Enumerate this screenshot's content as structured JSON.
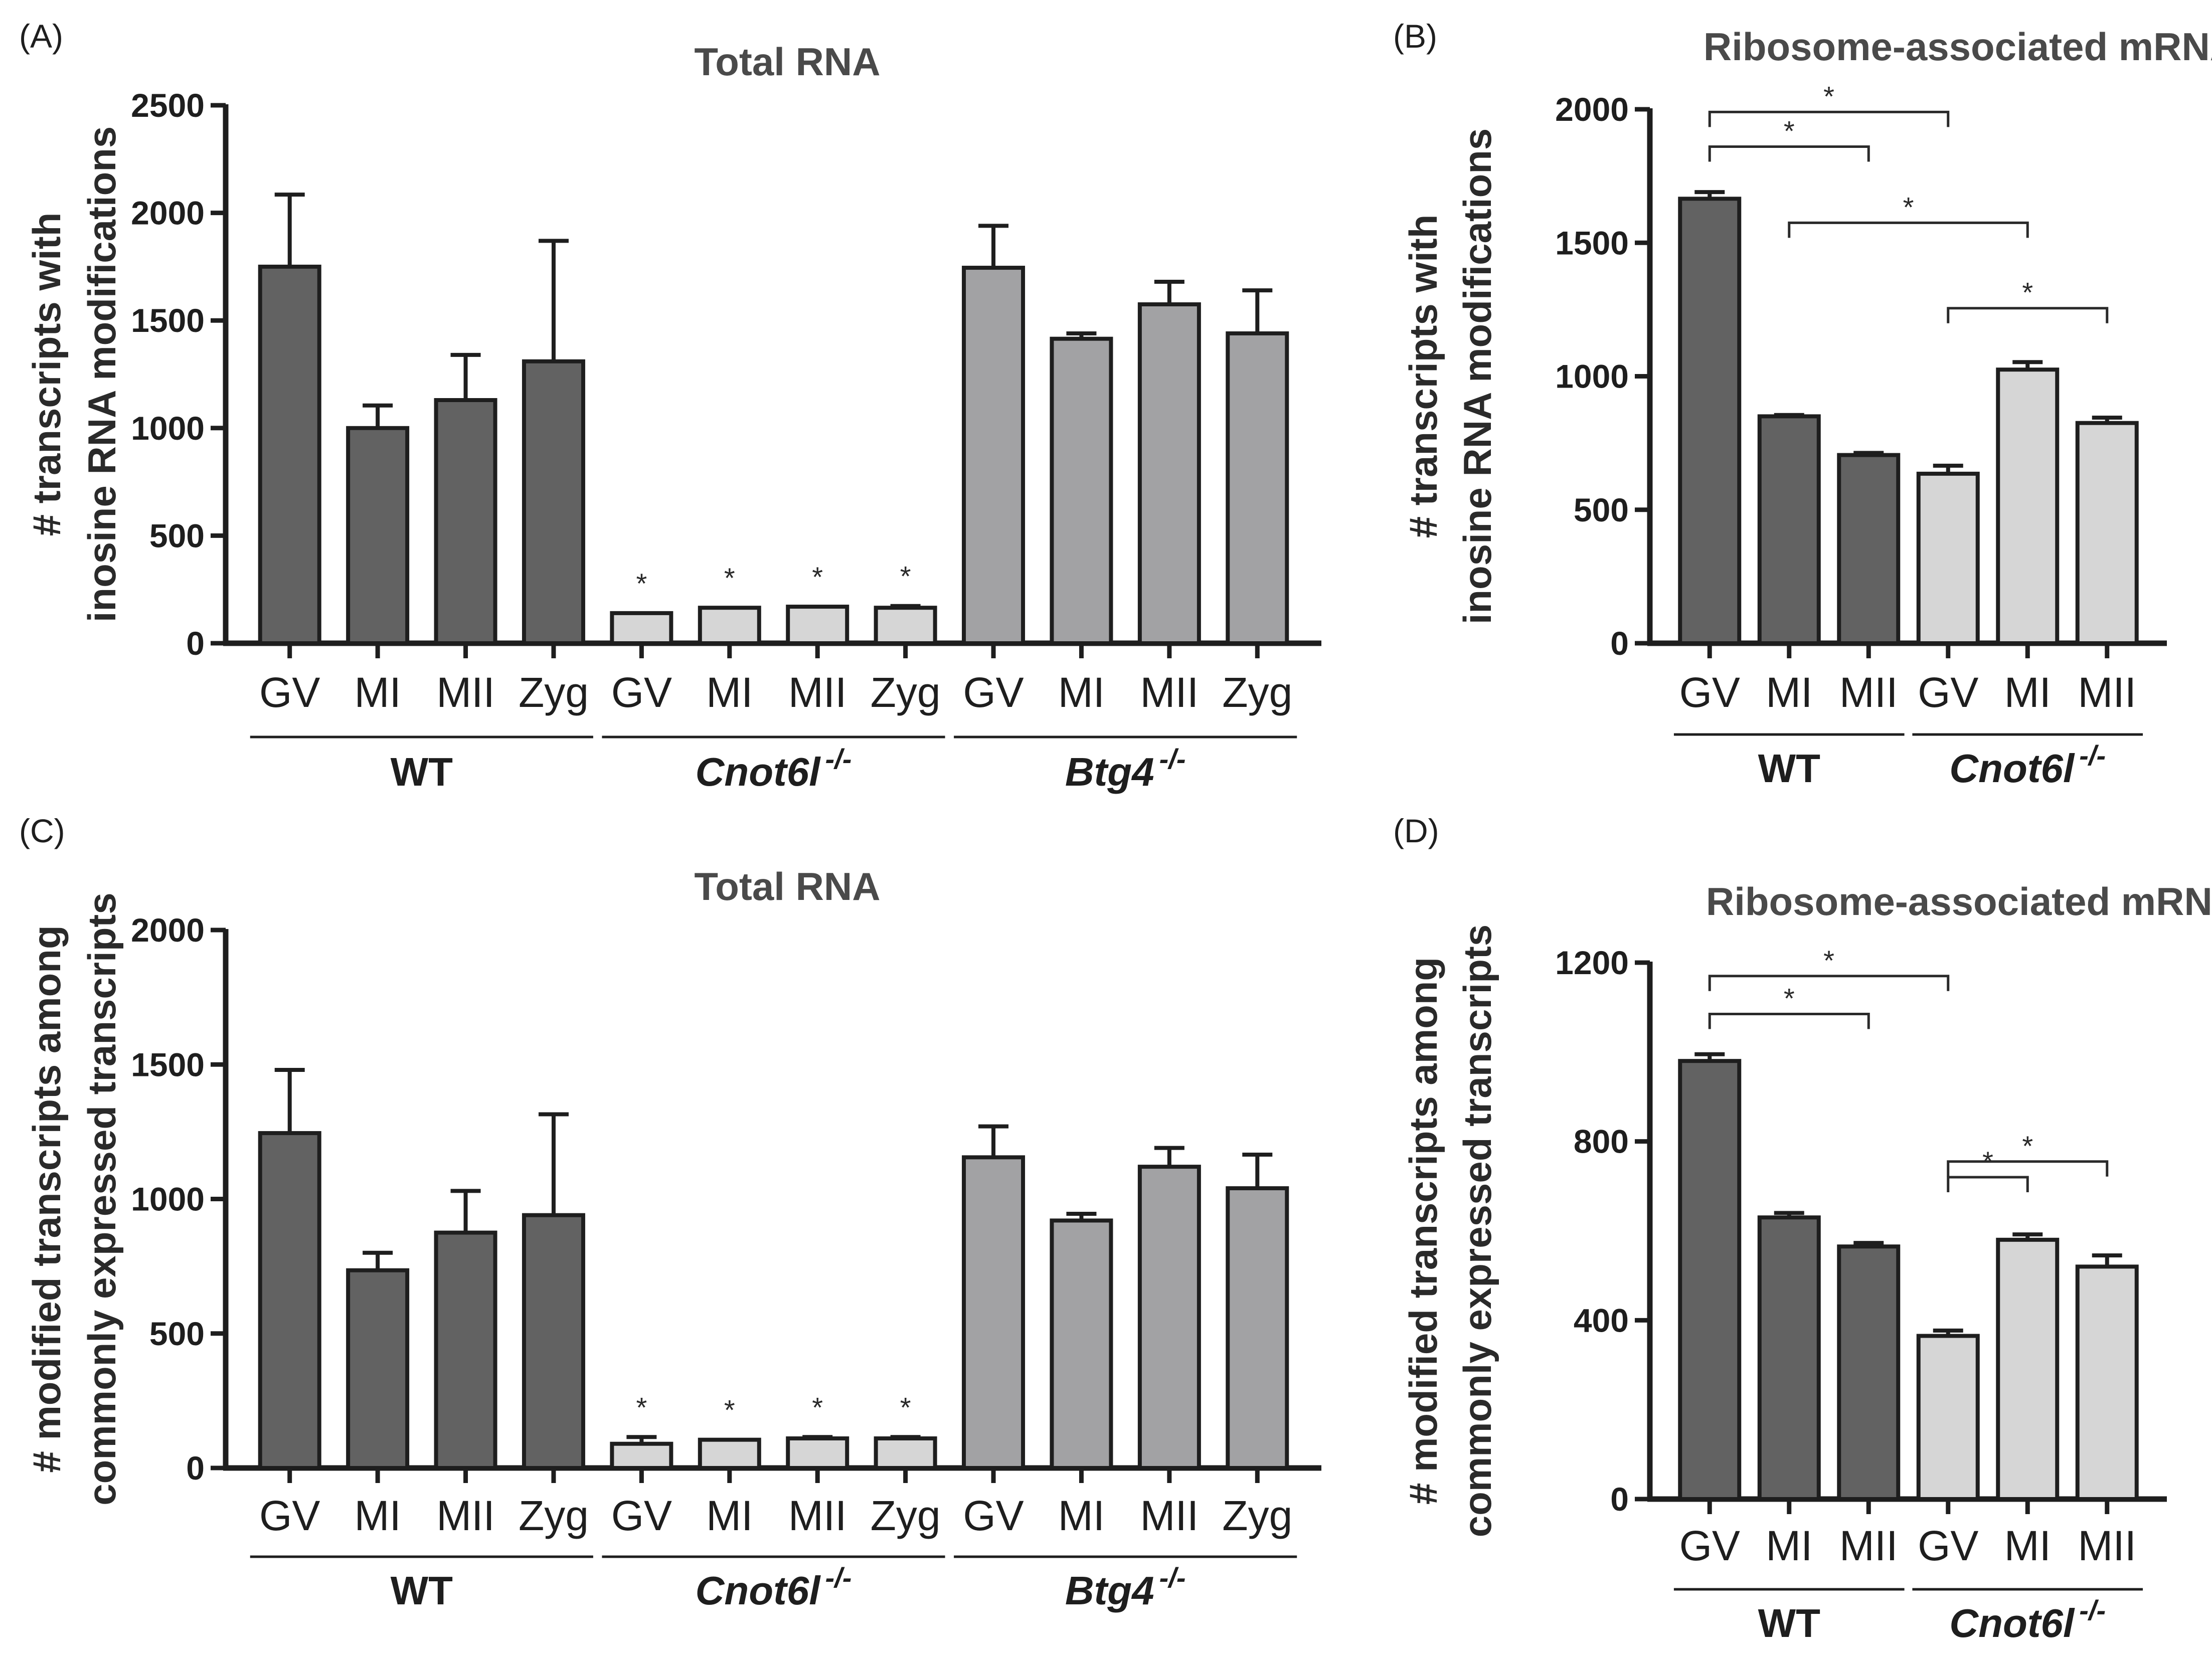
{
  "colors": {
    "wt": "#626262",
    "cnot6l": "#d6d6d6",
    "btg4": "#a2a2a4",
    "axis": "#1e1e1e",
    "title": "#4a4a4a"
  },
  "chart_data": [
    {
      "panel": "(A)",
      "type": "bar",
      "title": "Total RNA",
      "ylabel_lines": [
        "# transcripts with",
        "inosine RNA modifications"
      ],
      "ylim": [
        0,
        2500
      ],
      "yticks": [
        0,
        500,
        1000,
        1500,
        2000,
        2500
      ],
      "categories": [
        "GV",
        "MI",
        "MII",
        "Zyg",
        "GV",
        "MI",
        "MII",
        "Zyg",
        "GV",
        "MI",
        "MII",
        "Zyg"
      ],
      "values": [
        1750,
        1000,
        1130,
        1310,
        140,
        165,
        170,
        165,
        1745,
        1415,
        1575,
        1440
      ],
      "errors": [
        335,
        105,
        210,
        560,
        0,
        0,
        0,
        8,
        195,
        25,
        105,
        200
      ],
      "colorKeys": [
        "wt",
        "wt",
        "wt",
        "wt",
        "cnot6l",
        "cnot6l",
        "cnot6l",
        "cnot6l",
        "btg4",
        "btg4",
        "btg4",
        "btg4"
      ],
      "starred": [
        4,
        5,
        6,
        7
      ],
      "star_label": "*",
      "groups": [
        {
          "name": "WT",
          "sup": "",
          "italic": false,
          "from": 0,
          "to": 3
        },
        {
          "name": "Cnot6l",
          "sup": "-/-",
          "italic": true,
          "from": 4,
          "to": 7
        },
        {
          "name": "Btg4",
          "sup": "-/-",
          "italic": true,
          "from": 8,
          "to": 11
        }
      ],
      "brackets": []
    },
    {
      "panel": "(B)",
      "type": "bar",
      "title": "Ribosome-associated mRNA",
      "ylabel_lines": [
        "# transcripts with",
        "inosine RNA modifications"
      ],
      "ylim": [
        0,
        2000
      ],
      "yticks": [
        0,
        500,
        1000,
        1500,
        2000
      ],
      "categories": [
        "GV",
        "MI",
        "MII",
        "GV",
        "MI",
        "MII"
      ],
      "values": [
        1665,
        850,
        705,
        635,
        1025,
        825
      ],
      "errors": [
        25,
        5,
        8,
        30,
        28,
        20
      ],
      "colorKeys": [
        "wt",
        "wt",
        "wt",
        "cnot6l",
        "cnot6l",
        "cnot6l"
      ],
      "starred": [],
      "star_label": "*",
      "groups": [
        {
          "name": "WT",
          "sup": "",
          "italic": false,
          "from": 0,
          "to": 2
        },
        {
          "name": "Cnot6l",
          "sup": "-/-",
          "italic": true,
          "from": 3,
          "to": 5
        }
      ],
      "brackets": [
        {
          "from": 0,
          "to": 3,
          "y": 1990,
          "label": "*"
        },
        {
          "from": 0,
          "to": 2,
          "y": 1860,
          "label": "*"
        },
        {
          "from": 1,
          "to": 4,
          "y": 1575,
          "label": "*"
        },
        {
          "from": 3,
          "to": 5,
          "y": 1255,
          "label": "*"
        }
      ]
    },
    {
      "panel": "(C)",
      "type": "bar",
      "title": "Total RNA",
      "ylabel_lines": [
        "# modified transcripts among",
        "commonly expressed transcripts"
      ],
      "ylim": [
        0,
        2000
      ],
      "yticks": [
        0,
        500,
        1000,
        1500,
        2000
      ],
      "categories": [
        "GV",
        "MI",
        "MII",
        "Zyg",
        "GV",
        "MI",
        "MII",
        "Zyg",
        "GV",
        "MI",
        "MII",
        "Zyg"
      ],
      "values": [
        1245,
        735,
        875,
        940,
        90,
        105,
        110,
        110,
        1155,
        920,
        1120,
        1040
      ],
      "errors": [
        235,
        65,
        155,
        375,
        25,
        0,
        5,
        5,
        115,
        25,
        70,
        125
      ],
      "colorKeys": [
        "wt",
        "wt",
        "wt",
        "wt",
        "cnot6l",
        "cnot6l",
        "cnot6l",
        "cnot6l",
        "btg4",
        "btg4",
        "btg4",
        "btg4"
      ],
      "starred": [
        4,
        5,
        6,
        7
      ],
      "star_label": "*",
      "groups": [
        {
          "name": "WT",
          "sup": "",
          "italic": false,
          "from": 0,
          "to": 3
        },
        {
          "name": "Cnot6l",
          "sup": "-/-",
          "italic": true,
          "from": 4,
          "to": 7
        },
        {
          "name": "Btg4",
          "sup": "-/-",
          "italic": true,
          "from": 8,
          "to": 11
        }
      ],
      "brackets": []
    },
    {
      "panel": "(D)",
      "type": "bar",
      "title": "Ribosome-associated mRNA",
      "ylabel_lines": [
        "# modified transcripts among",
        "commonly expressed transcripts"
      ],
      "ylim": [
        0,
        1200
      ],
      "yticks": [
        0,
        400,
        800,
        1200
      ],
      "categories": [
        "GV",
        "MI",
        "MII",
        "GV",
        "MI",
        "MII"
      ],
      "values": [
        980,
        630,
        565,
        365,
        580,
        520
      ],
      "errors": [
        15,
        10,
        8,
        12,
        12,
        25
      ],
      "colorKeys": [
        "wt",
        "wt",
        "wt",
        "cnot6l",
        "cnot6l",
        "cnot6l"
      ],
      "starred": [],
      "star_label": "*",
      "groups": [
        {
          "name": "WT",
          "sup": "",
          "italic": false,
          "from": 0,
          "to": 2
        },
        {
          "name": "Cnot6l",
          "sup": "-/-",
          "italic": true,
          "from": 3,
          "to": 5
        }
      ],
      "brackets": [
        {
          "from": 0,
          "to": 3,
          "y": 1170,
          "label": "*"
        },
        {
          "from": 0,
          "to": 2,
          "y": 1085,
          "label": "*"
        },
        {
          "from": 3,
          "to": 4,
          "y": 720,
          "label": "*"
        },
        {
          "from": 3,
          "to": 5,
          "y": 755,
          "label": "*"
        }
      ]
    }
  ]
}
